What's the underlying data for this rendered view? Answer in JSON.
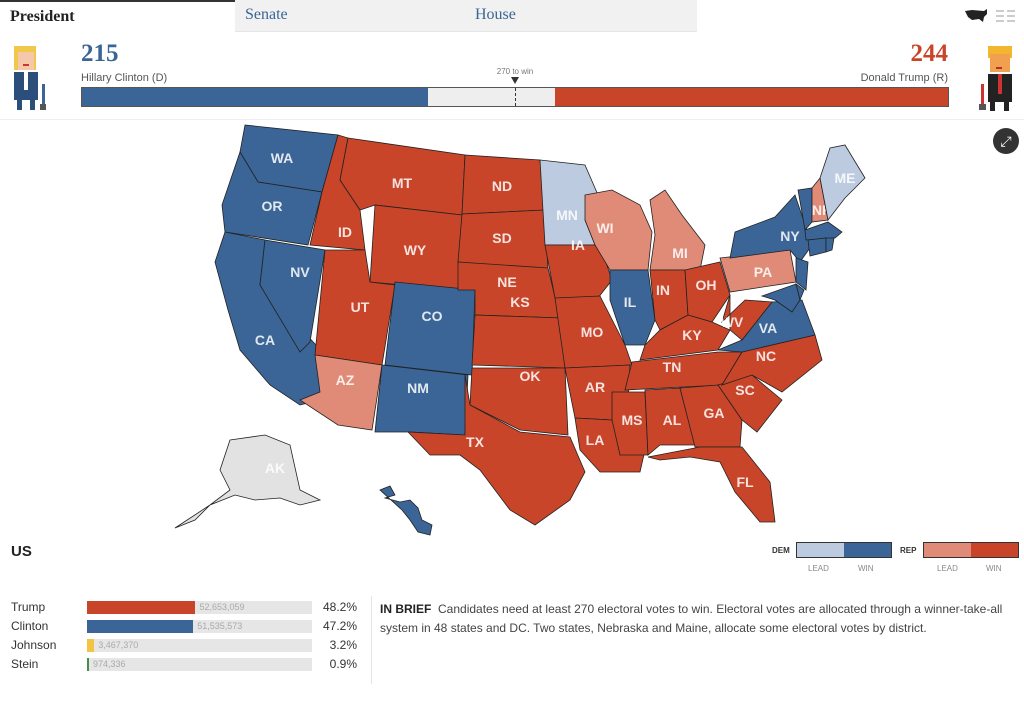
{
  "tabs": [
    {
      "label": "President",
      "active": true
    },
    {
      "label": "Senate"
    },
    {
      "label": "House"
    }
  ],
  "view_icons": [
    "us-map-icon",
    "list-icon"
  ],
  "clinton": {
    "votes": "215",
    "name": "Hillary Clinton (D)"
  },
  "trump": {
    "votes": "244",
    "name": "Donald Trump (R)"
  },
  "threshold": "270 to win",
  "electoral": {
    "total": 538,
    "dem": 215,
    "rep": 244
  },
  "colors": {
    "dem_win": "#3a6596",
    "dem_lead": "#bccbe0",
    "rep_win": "#c8452a",
    "rep_lead": "#e08b78",
    "none": "#e2e2e2"
  },
  "states": {
    "WA": "dem_win",
    "OR": "dem_win",
    "CA": "dem_win",
    "NV": "dem_win",
    "ID": "rep_win",
    "MT": "rep_win",
    "WY": "rep_win",
    "UT": "rep_win",
    "CO": "dem_win",
    "AZ": "rep_lead",
    "NM": "dem_win",
    "ND": "rep_win",
    "SD": "rep_win",
    "NE": "rep_win",
    "KS": "rep_win",
    "OK": "rep_win",
    "TX": "rep_win",
    "MN": "dem_lead",
    "IA": "rep_win",
    "MO": "rep_win",
    "AR": "rep_win",
    "LA": "rep_win",
    "WI": "rep_lead",
    "IL": "dem_win",
    "MI": "rep_lead",
    "IN": "rep_win",
    "OH": "rep_win",
    "KY": "rep_win",
    "TN": "rep_win",
    "MS": "rep_win",
    "AL": "rep_win",
    "GA": "rep_win",
    "FL": "rep_win",
    "SC": "rep_win",
    "NC": "rep_win",
    "VA": "dem_win",
    "WV": "rep_win",
    "PA": "rep_lead",
    "NY": "dem_win",
    "ME": "dem_lead",
    "NH": "rep_lead",
    "VT": "dem_win",
    "MA": "dem_win",
    "CT": "dem_win",
    "RI": "dem_win",
    "NJ": "dem_win",
    "DE": "dem_win",
    "MD": "dem_win",
    "AK": "none",
    "HI": "dem_win"
  },
  "region": "US",
  "legend": {
    "dem": "DEM",
    "rep": "REP",
    "lead": "LEAD",
    "win": "WIN"
  },
  "popular": [
    {
      "name": "Trump",
      "votes": "52,653,059",
      "pct": "48.2%",
      "share": 48.2,
      "color": "#c8452a"
    },
    {
      "name": "Clinton",
      "votes": "51,535,573",
      "pct": "47.2%",
      "share": 47.2,
      "color": "#3a6596"
    },
    {
      "name": "Johnson",
      "votes": "3,467,370",
      "pct": "3.2%",
      "share": 3.2,
      "color": "#f5c342"
    },
    {
      "name": "Stein",
      "votes": "974,336",
      "pct": "0.9%",
      "share": 0.9,
      "color": "#4a8a4a"
    }
  ],
  "brief": {
    "label": "IN BRIEF",
    "text": "Candidates need at least 270 electoral votes to win. Electoral votes are allocated through a winner-take-all system in 48 states and DC. Two states, Nebraska and Maine, allocate some electoral votes by district."
  }
}
